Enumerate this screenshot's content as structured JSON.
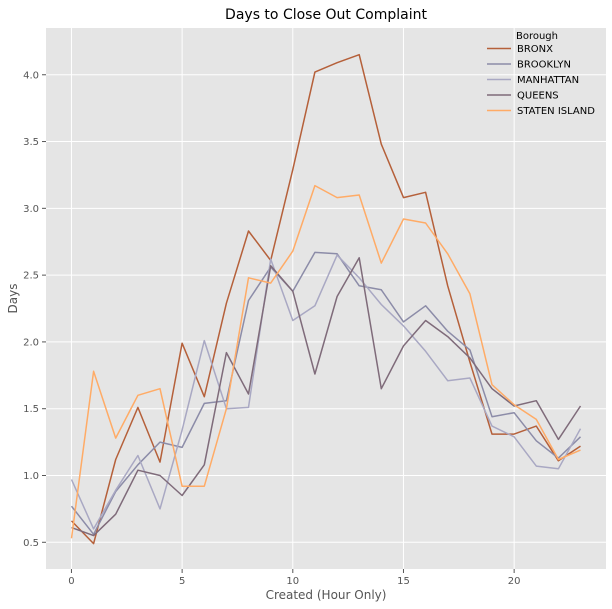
{
  "chart_data": {
    "type": "line",
    "title": "Days to Close Out Complaint",
    "xlabel": "Created (Hour Only)",
    "ylabel": "Days",
    "x": [
      0,
      1,
      2,
      3,
      4,
      5,
      6,
      7,
      8,
      9,
      10,
      11,
      12,
      13,
      14,
      15,
      16,
      17,
      18,
      19,
      20,
      21,
      22,
      23
    ],
    "xlim": [
      -1.15,
      24.15
    ],
    "ylim": [
      0.3,
      4.35
    ],
    "xticks": [
      0,
      5,
      10,
      15,
      20
    ],
    "yticks": [
      0.5,
      1.0,
      1.5,
      2.0,
      2.5,
      3.0,
      3.5,
      4.0
    ],
    "xtick_labels": [
      "0",
      "5",
      "10",
      "15",
      "20"
    ],
    "ytick_labels": [
      "0.5",
      "1.0",
      "1.5",
      "2.0",
      "2.5",
      "3.0",
      "3.5",
      "4.0"
    ],
    "grid": true,
    "legend": {
      "title": "Borough",
      "placement": "top-right"
    },
    "series": [
      {
        "name": "BRONX",
        "color": "#b5603a",
        "values": [
          0.66,
          0.49,
          1.12,
          1.51,
          1.1,
          1.99,
          1.59,
          2.29,
          2.83,
          2.61,
          3.29,
          4.02,
          4.09,
          4.15,
          3.48,
          3.08,
          3.12,
          2.42,
          1.85,
          1.31,
          1.31,
          1.37,
          1.11,
          1.22
        ]
      },
      {
        "name": "BROOKLYN",
        "color": "#8c8ca8",
        "values": [
          0.77,
          0.56,
          0.88,
          1.08,
          1.25,
          1.21,
          1.54,
          1.56,
          2.31,
          2.56,
          2.38,
          2.67,
          2.66,
          2.42,
          2.39,
          2.15,
          2.27,
          2.08,
          1.94,
          1.44,
          1.47,
          1.26,
          1.13,
          1.29
        ]
      },
      {
        "name": "MANHATTAN",
        "color": "#a9a8c3",
        "values": [
          0.97,
          0.6,
          0.89,
          1.15,
          0.75,
          1.34,
          2.01,
          1.5,
          1.51,
          2.62,
          2.16,
          2.27,
          2.65,
          2.48,
          2.28,
          2.12,
          1.93,
          1.71,
          1.73,
          1.37,
          1.29,
          1.07,
          1.05,
          1.35
        ]
      },
      {
        "name": "QUEENS",
        "color": "#7f6b7a",
        "values": [
          0.61,
          0.55,
          0.71,
          1.04,
          1.0,
          0.85,
          1.08,
          1.92,
          1.61,
          2.57,
          2.38,
          1.76,
          2.34,
          2.63,
          1.65,
          1.97,
          2.16,
          2.04,
          1.88,
          1.65,
          1.52,
          1.56,
          1.27,
          1.52
        ]
      },
      {
        "name": "STATEN ISLAND",
        "color": "#ffab66",
        "values": [
          0.53,
          1.78,
          1.28,
          1.6,
          1.65,
          0.92,
          0.92,
          1.5,
          2.48,
          2.44,
          2.68,
          3.17,
          3.08,
          3.1,
          2.59,
          2.92,
          2.89,
          2.66,
          2.36,
          1.68,
          1.53,
          1.42,
          1.12,
          1.19
        ]
      }
    ]
  }
}
